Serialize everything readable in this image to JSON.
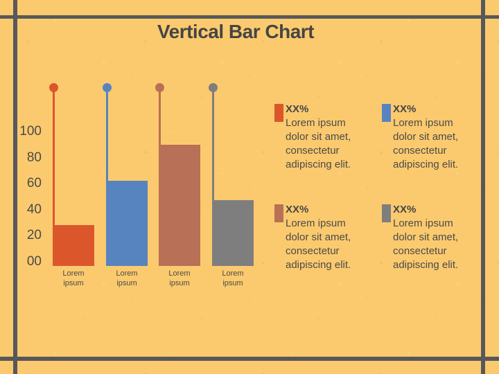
{
  "slide": {
    "title": "Vertical Bar Chart",
    "background_color": "#FBCA6E",
    "frame_color": "#58585A",
    "text_color": "#4A4A4A"
  },
  "chart_data": {
    "type": "bar",
    "title": "Vertical Bar Chart",
    "categories": [
      "Lorem ipsum",
      "Lorem ipsum",
      "Lorem ipsum",
      "Lorem ipsum"
    ],
    "values": [
      28,
      62,
      90,
      47
    ],
    "colors": [
      "#DC562C",
      "#5784BE",
      "#B87056",
      "#7E7E7E"
    ],
    "y_ticks": [
      "100",
      "80",
      "60",
      "40",
      "20",
      "00"
    ],
    "ylim": [
      0,
      100
    ],
    "xlabel": "",
    "ylabel": "",
    "layout": {
      "grid": false,
      "axis_lines": false,
      "legend_position": "right side, 2x2 grid",
      "lollipop_stems_with_dot_caps_above_bars": true
    }
  },
  "legend": {
    "items": [
      {
        "swatch_color": "#DC562C",
        "value_label": "XX%",
        "description": "Lorem ipsum dolor sit amet, consectetur adipiscing elit."
      },
      {
        "swatch_color": "#5784BE",
        "value_label": "XX%",
        "description": "Lorem ipsum dolor sit amet, consectetur adipiscing elit."
      },
      {
        "swatch_color": "#B87056",
        "value_label": "XX%",
        "description": "Lorem ipsum dolor sit amet, consectetur adipiscing elit."
      },
      {
        "swatch_color": "#7E7E7E",
        "value_label": "XX%",
        "description": "Lorem ipsum dolor sit amet, consectetur adipiscing elit."
      }
    ]
  }
}
